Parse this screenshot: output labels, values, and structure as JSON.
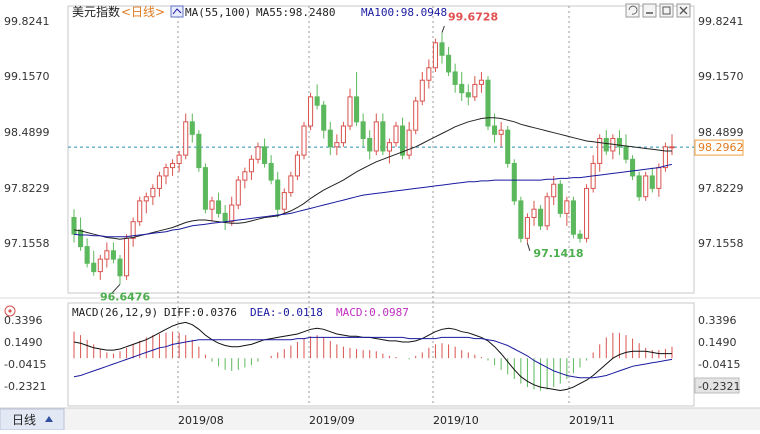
{
  "header": {
    "instrument": "美元指数",
    "period": "<日线>",
    "ma_label": "MA(55,100)",
    "ma55": "MA55:98.2480",
    "ma100": "MA100:98.0948"
  },
  "macd_header": {
    "label": "MACD(26,12,9)",
    "diff": "DIFF:0.0376",
    "dea": "DEA:-0.0118",
    "macd": "MACD:0.0987"
  },
  "footer": {
    "period_tab": "日线",
    "x_ticks": [
      "2019/08",
      "2019/09",
      "2019/10",
      "2019/11"
    ]
  },
  "colors": {
    "up": "#d9534f",
    "down": "#5cb85c",
    "ma55": "#222222",
    "ma100": "#1a1aa0",
    "price_line": "#2a8fb0",
    "macd_diff": "#111111",
    "macd_dea": "#1a1aa0"
  },
  "icons": [
    "restore-icon",
    "minimize-icon",
    "maximize-icon",
    "close-icon",
    "macd-settings-icon"
  ],
  "chart_data": [
    {
      "type": "candlestick",
      "y_ticks": [
        "99.8241",
        "99.1570",
        "98.4899",
        "97.8229",
        "97.1558"
      ],
      "ylim": [
        96.5,
        99.95
      ],
      "current_price": "98.2962",
      "annotations": [
        {
          "text": "99.6728",
          "value": 99.6728
        },
        {
          "text": "97.1418",
          "value": 97.1418
        },
        {
          "text": "96.6476",
          "value": 96.6476
        }
      ],
      "ohlc": [
        [
          97.45,
          97.55,
          97.15,
          97.25
        ],
        [
          97.3,
          97.45,
          97.05,
          97.1
        ],
        [
          97.1,
          97.2,
          96.85,
          96.9
        ],
        [
          96.9,
          97.05,
          96.75,
          96.8
        ],
        [
          96.8,
          97.0,
          96.7,
          96.95
        ],
        [
          96.95,
          97.15,
          96.85,
          97.05
        ],
        [
          97.05,
          97.15,
          96.9,
          96.95
        ],
        [
          96.95,
          97.0,
          96.65,
          96.75
        ],
        [
          96.75,
          97.25,
          96.7,
          97.2
        ],
        [
          97.2,
          97.45,
          97.1,
          97.4
        ],
        [
          97.4,
          97.7,
          97.35,
          97.65
        ],
        [
          97.65,
          97.75,
          97.5,
          97.7
        ],
        [
          97.7,
          97.85,
          97.6,
          97.8
        ],
        [
          97.8,
          98.0,
          97.7,
          97.95
        ],
        [
          97.95,
          98.1,
          97.85,
          98.05
        ],
        [
          98.05,
          98.15,
          97.95,
          98.1
        ],
        [
          98.1,
          98.25,
          98.0,
          98.2
        ],
        [
          98.2,
          98.7,
          98.15,
          98.6
        ],
        [
          98.6,
          98.7,
          98.35,
          98.45
        ],
        [
          98.45,
          98.5,
          98.0,
          98.05
        ],
        [
          98.05,
          98.1,
          97.5,
          97.55
        ],
        [
          97.55,
          97.7,
          97.4,
          97.65
        ],
        [
          97.65,
          97.75,
          97.45,
          97.5
        ],
        [
          97.5,
          97.6,
          97.3,
          97.4
        ],
        [
          97.4,
          97.7,
          97.35,
          97.6
        ],
        [
          97.6,
          97.95,
          97.55,
          97.9
        ],
        [
          97.9,
          98.05,
          97.8,
          98.0
        ],
        [
          98.0,
          98.2,
          97.9,
          98.15
        ],
        [
          98.15,
          98.35,
          98.1,
          98.3
        ],
        [
          98.3,
          98.4,
          98.05,
          98.1
        ],
        [
          98.1,
          98.2,
          97.85,
          97.9
        ],
        [
          97.9,
          98.0,
          97.45,
          97.55
        ],
        [
          97.55,
          97.8,
          97.5,
          97.75
        ],
        [
          97.75,
          98.0,
          97.7,
          97.95
        ],
        [
          97.95,
          98.25,
          97.9,
          98.2
        ],
        [
          98.2,
          98.6,
          98.15,
          98.55
        ],
        [
          98.55,
          98.95,
          98.5,
          98.9
        ],
        [
          98.9,
          99.05,
          98.75,
          98.8
        ],
        [
          98.8,
          98.85,
          98.4,
          98.5
        ],
        [
          98.5,
          98.6,
          98.2,
          98.3
        ],
        [
          98.3,
          98.45,
          98.2,
          98.35
        ],
        [
          98.35,
          98.6,
          98.3,
          98.55
        ],
        [
          98.55,
          99.0,
          98.5,
          98.9
        ],
        [
          98.9,
          99.2,
          98.55,
          98.6
        ],
        [
          98.6,
          98.7,
          98.3,
          98.4
        ],
        [
          98.4,
          98.5,
          98.15,
          98.25
        ],
        [
          98.25,
          98.7,
          98.2,
          98.6
        ],
        [
          98.6,
          98.7,
          98.2,
          98.25
        ],
        [
          98.25,
          98.4,
          98.1,
          98.35
        ],
        [
          98.35,
          98.6,
          98.3,
          98.55
        ],
        [
          98.55,
          98.65,
          98.15,
          98.2
        ],
        [
          98.2,
          98.6,
          98.15,
          98.5
        ],
        [
          98.5,
          98.9,
          98.45,
          98.85
        ],
        [
          98.85,
          99.2,
          98.8,
          99.1
        ],
        [
          99.1,
          99.35,
          99.0,
          99.25
        ],
        [
          99.25,
          99.6,
          99.2,
          99.55
        ],
        [
          99.55,
          99.67,
          99.3,
          99.4
        ],
        [
          99.4,
          99.5,
          99.15,
          99.2
        ],
        [
          99.2,
          99.3,
          98.95,
          99.05
        ],
        [
          99.05,
          99.2,
          98.85,
          98.95
        ],
        [
          98.95,
          99.05,
          98.8,
          98.9
        ],
        [
          98.9,
          99.15,
          98.85,
          99.05
        ],
        [
          99.05,
          99.2,
          98.95,
          99.1
        ],
        [
          99.1,
          99.15,
          98.5,
          98.55
        ],
        [
          98.55,
          98.7,
          98.35,
          98.45
        ],
        [
          98.45,
          98.6,
          98.3,
          98.5
        ],
        [
          98.5,
          98.55,
          98.05,
          98.1
        ],
        [
          98.1,
          98.15,
          97.6,
          97.65
        ],
        [
          97.65,
          97.7,
          97.15,
          97.2
        ],
        [
          97.2,
          97.5,
          97.14,
          97.45
        ],
        [
          97.45,
          97.65,
          97.35,
          97.55
        ],
        [
          97.55,
          97.6,
          97.3,
          97.35
        ],
        [
          97.35,
          97.75,
          97.3,
          97.7
        ],
        [
          97.7,
          97.95,
          97.6,
          97.85
        ],
        [
          97.85,
          97.9,
          97.45,
          97.5
        ],
        [
          97.5,
          97.7,
          97.35,
          97.65
        ],
        [
          97.65,
          97.7,
          97.2,
          97.25
        ],
        [
          97.25,
          97.3,
          97.15,
          97.2
        ],
        [
          97.2,
          97.85,
          97.15,
          97.8
        ],
        [
          97.8,
          98.2,
          97.75,
          98.1
        ],
        [
          98.1,
          98.45,
          98.0,
          98.4
        ],
        [
          98.4,
          98.5,
          98.2,
          98.25
        ],
        [
          98.25,
          98.45,
          98.15,
          98.4
        ],
        [
          98.4,
          98.5,
          98.2,
          98.3
        ],
        [
          98.3,
          98.45,
          98.1,
          98.15
        ],
        [
          98.15,
          98.2,
          97.9,
          97.95
        ],
        [
          97.95,
          98.0,
          97.65,
          97.7
        ],
        [
          97.7,
          98.0,
          97.65,
          97.95
        ],
        [
          97.95,
          98.05,
          97.75,
          97.8
        ],
        [
          97.8,
          98.1,
          97.7,
          98.05
        ],
        [
          98.05,
          98.35,
          98.0,
          98.3
        ],
        [
          98.3,
          98.45,
          98.2,
          98.3
        ]
      ],
      "ma55": [
        97.3,
        97.29,
        97.27,
        97.25,
        97.23,
        97.21,
        97.2,
        97.19,
        97.2,
        97.21,
        97.23,
        97.25,
        97.27,
        97.29,
        97.31,
        97.33,
        97.36,
        97.39,
        97.41,
        97.42,
        97.42,
        97.41,
        97.4,
        97.39,
        97.38,
        97.38,
        97.39,
        97.41,
        97.43,
        97.45,
        97.46,
        97.47,
        97.5,
        97.53,
        97.57,
        97.62,
        97.68,
        97.73,
        97.78,
        97.82,
        97.86,
        97.9,
        97.95,
        98.0,
        98.04,
        98.08,
        98.12,
        98.15,
        98.18,
        98.21,
        98.24,
        98.27,
        98.3,
        98.34,
        98.38,
        98.42,
        98.46,
        98.5,
        98.54,
        98.57,
        98.6,
        98.62,
        98.64,
        98.65,
        98.65,
        98.64,
        98.62,
        98.6,
        98.57,
        98.55,
        98.53,
        98.51,
        98.49,
        98.47,
        98.45,
        98.43,
        98.41,
        98.39,
        98.37,
        98.36,
        98.35,
        98.34,
        98.33,
        98.32,
        98.31,
        98.3,
        98.29,
        98.28,
        98.27,
        98.26,
        98.25,
        98.25
      ],
      "ma100": [
        97.25,
        97.24,
        97.24,
        97.23,
        97.23,
        97.22,
        97.22,
        97.22,
        97.22,
        97.23,
        97.24,
        97.25,
        97.26,
        97.27,
        97.28,
        97.3,
        97.31,
        97.33,
        97.35,
        97.36,
        97.37,
        97.38,
        97.39,
        97.4,
        97.41,
        97.42,
        97.43,
        97.44,
        97.45,
        97.46,
        97.47,
        97.48,
        97.49,
        97.5,
        97.52,
        97.54,
        97.56,
        97.58,
        97.6,
        97.62,
        97.64,
        97.66,
        97.68,
        97.7,
        97.72,
        97.73,
        97.74,
        97.75,
        97.76,
        97.77,
        97.78,
        97.79,
        97.8,
        97.81,
        97.82,
        97.83,
        97.84,
        97.85,
        97.86,
        97.87,
        97.88,
        97.88,
        97.89,
        97.89,
        97.9,
        97.9,
        97.9,
        97.9,
        97.9,
        97.9,
        97.9,
        97.9,
        97.91,
        97.91,
        97.92,
        97.92,
        97.93,
        97.93,
        97.94,
        97.95,
        97.96,
        97.97,
        97.98,
        97.99,
        98.0,
        98.01,
        98.02,
        98.03,
        98.04,
        98.05,
        98.07,
        98.09
      ]
    },
    {
      "type": "bar",
      "y_ticks": [
        "0.3396",
        "0.1490",
        "-0.0415",
        "-0.2321"
      ],
      "ylim": [
        -0.42,
        0.52
      ],
      "macd": [
        0.23,
        0.2,
        0.16,
        0.12,
        0.08,
        0.05,
        0.04,
        0.06,
        0.09,
        0.12,
        0.15,
        0.18,
        0.2,
        0.21,
        0.22,
        0.23,
        0.22,
        0.2,
        0.16,
        0.1,
        0.03,
        -0.03,
        -0.07,
        -0.1,
        -0.11,
        -0.1,
        -0.08,
        -0.06,
        -0.03,
        0.0,
        0.02,
        0.05,
        0.08,
        0.11,
        0.14,
        0.17,
        0.19,
        0.2,
        0.18,
        0.15,
        0.12,
        0.1,
        0.09,
        0.08,
        0.07,
        0.07,
        0.06,
        0.04,
        0.02,
        0.01,
        0.0,
        -0.01,
        0.02,
        0.05,
        0.09,
        0.12,
        0.13,
        0.12,
        0.1,
        0.07,
        0.05,
        0.03,
        0.01,
        -0.02,
        -0.06,
        -0.1,
        -0.14,
        -0.18,
        -0.22,
        -0.25,
        -0.27,
        -0.28,
        -0.27,
        -0.25,
        -0.22,
        -0.18,
        -0.13,
        -0.08,
        -0.02,
        0.05,
        0.12,
        0.18,
        0.22,
        0.22,
        0.2,
        0.17,
        0.13,
        0.09,
        0.07,
        0.07,
        0.08,
        0.1
      ],
      "diff": [
        0.14,
        0.13,
        0.11,
        0.09,
        0.08,
        0.07,
        0.07,
        0.08,
        0.1,
        0.12,
        0.14,
        0.16,
        0.19,
        0.22,
        0.25,
        0.28,
        0.3,
        0.31,
        0.29,
        0.25,
        0.2,
        0.16,
        0.13,
        0.11,
        0.1,
        0.1,
        0.11,
        0.12,
        0.14,
        0.16,
        0.17,
        0.18,
        0.19,
        0.2,
        0.21,
        0.23,
        0.25,
        0.26,
        0.25,
        0.23,
        0.21,
        0.2,
        0.19,
        0.19,
        0.18,
        0.18,
        0.17,
        0.16,
        0.15,
        0.15,
        0.14,
        0.14,
        0.15,
        0.17,
        0.2,
        0.23,
        0.25,
        0.26,
        0.25,
        0.23,
        0.22,
        0.2,
        0.18,
        0.15,
        0.1,
        0.04,
        -0.03,
        -0.1,
        -0.16,
        -0.2,
        -0.23,
        -0.25,
        -0.26,
        -0.27,
        -0.28,
        -0.27,
        -0.25,
        -0.22,
        -0.19,
        -0.15,
        -0.1,
        -0.05,
        0.0,
        0.03,
        0.05,
        0.06,
        0.06,
        0.06,
        0.05,
        0.04,
        0.04,
        0.04
      ],
      "dea": [
        -0.16,
        -0.15,
        -0.13,
        -0.11,
        -0.09,
        -0.07,
        -0.05,
        -0.03,
        -0.01,
        0.01,
        0.03,
        0.05,
        0.07,
        0.09,
        0.1,
        0.12,
        0.13,
        0.14,
        0.15,
        0.16,
        0.16,
        0.16,
        0.16,
        0.16,
        0.16,
        0.16,
        0.16,
        0.16,
        0.16,
        0.16,
        0.16,
        0.16,
        0.16,
        0.16,
        0.17,
        0.17,
        0.18,
        0.18,
        0.18,
        0.18,
        0.18,
        0.18,
        0.18,
        0.18,
        0.18,
        0.18,
        0.18,
        0.18,
        0.18,
        0.18,
        0.18,
        0.17,
        0.17,
        0.17,
        0.17,
        0.17,
        0.18,
        0.18,
        0.18,
        0.18,
        0.18,
        0.17,
        0.17,
        0.16,
        0.15,
        0.13,
        0.11,
        0.08,
        0.05,
        0.02,
        -0.02,
        -0.05,
        -0.08,
        -0.11,
        -0.13,
        -0.15,
        -0.16,
        -0.17,
        -0.17,
        -0.17,
        -0.16,
        -0.15,
        -0.13,
        -0.11,
        -0.09,
        -0.07,
        -0.06,
        -0.05,
        -0.04,
        -0.03,
        -0.02,
        -0.01
      ]
    }
  ]
}
